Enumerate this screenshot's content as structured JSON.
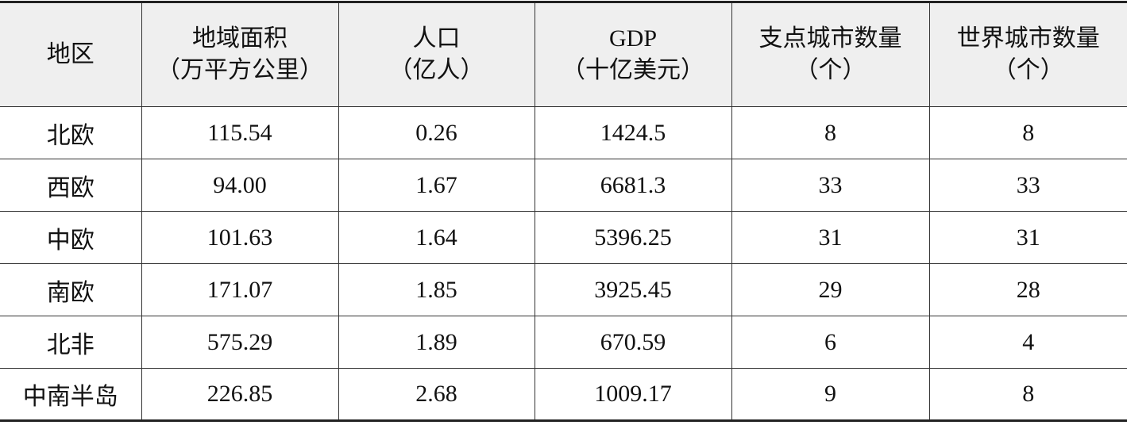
{
  "table": {
    "header": [
      [
        "地区"
      ],
      [
        "地域面积",
        "（万平方公里）"
      ],
      [
        "人口",
        "（亿人）"
      ],
      [
        "GDP",
        "（十亿美元）"
      ],
      [
        "支点城市数量",
        "（个）"
      ],
      [
        "世界城市数量",
        "（个）"
      ]
    ],
    "rows": [
      [
        "北欧",
        "115.54",
        "0.26",
        "1424.5",
        "8",
        "8"
      ],
      [
        "西欧",
        "94.00",
        "1.67",
        "6681.3",
        "33",
        "33"
      ],
      [
        "中欧",
        "101.63",
        "1.64",
        "5396.25",
        "31",
        "31"
      ],
      [
        "南欧",
        "171.07",
        "1.85",
        "3925.45",
        "29",
        "28"
      ],
      [
        "北非",
        "575.29",
        "1.89",
        "670.59",
        "6",
        "4"
      ],
      [
        "中南半岛",
        "226.85",
        "2.68",
        "1009.17",
        "9",
        "8"
      ]
    ]
  }
}
